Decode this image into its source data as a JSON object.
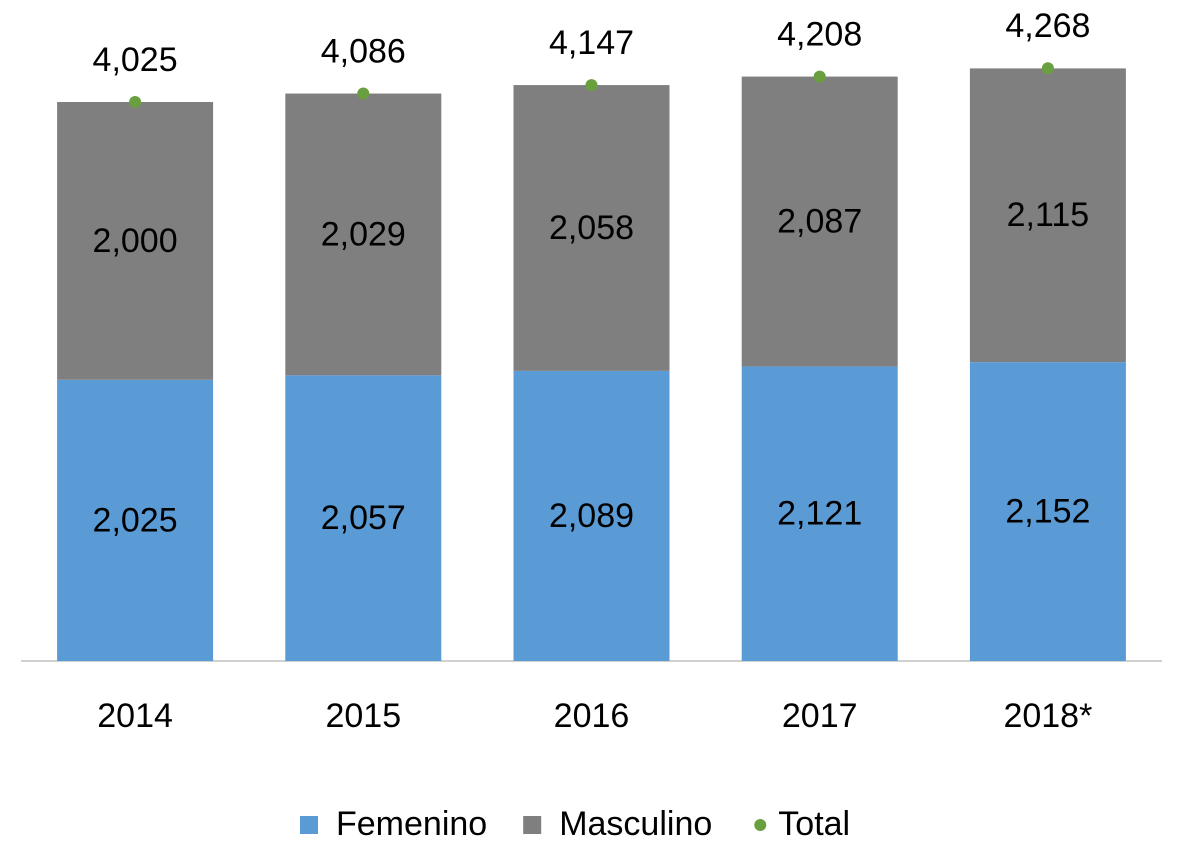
{
  "chart_data": {
    "type": "bar",
    "stacked": true,
    "categories": [
      "2014",
      "2015",
      "2016",
      "2017",
      "2018*"
    ],
    "series": [
      {
        "name": "Femenino",
        "color": "#5b9bd5",
        "values": [
          2025,
          2057,
          2089,
          2121,
          2152
        ],
        "value_labels": [
          "2,025",
          "2,057",
          "2,089",
          "2,121",
          "2,152"
        ]
      },
      {
        "name": "Masculino",
        "color": "#7f7f7f",
        "values": [
          2000,
          2029,
          2058,
          2087,
          2115
        ],
        "value_labels": [
          "2,000",
          "2,029",
          "2,058",
          "2,087",
          "2,115"
        ]
      },
      {
        "name": "Total",
        "type": "marker",
        "color": "#6a9f3f",
        "values": [
          4025,
          4086,
          4147,
          4208,
          4268
        ],
        "value_labels": [
          "4,025",
          "4,086",
          "4,147",
          "4,208",
          "4,268"
        ]
      }
    ],
    "legend": "bottom"
  }
}
